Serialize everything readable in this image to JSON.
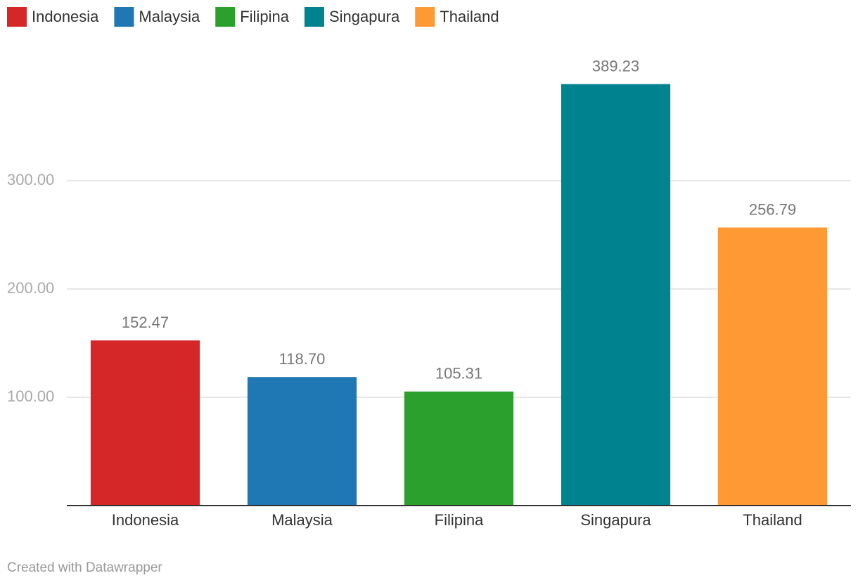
{
  "chart_data": {
    "type": "bar",
    "categories": [
      "Indonesia",
      "Malaysia",
      "Filipina",
      "Singapura",
      "Thailand"
    ],
    "values": [
      152.47,
      118.7,
      105.31,
      389.23,
      256.79
    ],
    "value_labels": [
      "152.47",
      "118.70",
      "105.31",
      "389.23",
      "256.79"
    ],
    "colors": [
      "#d62728",
      "#1f77b4",
      "#2ca02c",
      "#00838f",
      "#ff9933"
    ],
    "ylim": [
      0,
      400
    ],
    "yticks": [
      {
        "value": 100,
        "label": "100.00"
      },
      {
        "value": 200,
        "label": "200.00"
      },
      {
        "value": 300,
        "label": "300.00"
      }
    ],
    "grid": true,
    "legend": "top-left",
    "credit": "Created with Datawrapper"
  }
}
